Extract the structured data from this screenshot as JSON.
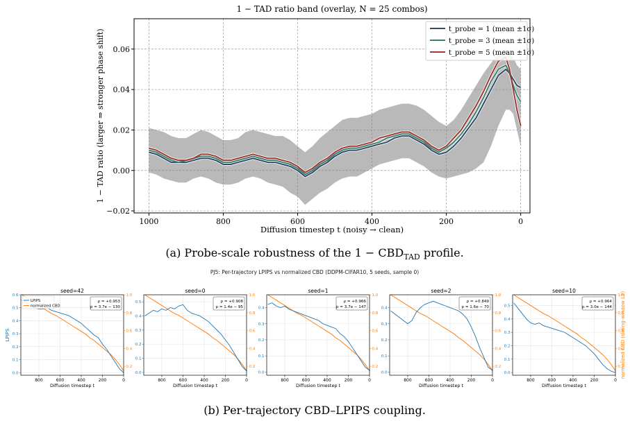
{
  "colors": {
    "band_gray": "#7f7f7f",
    "probe1": "#2f4b68",
    "probe3": "#3f7f6e",
    "probe5": "#9a3a35",
    "lpips": "#1f77b4",
    "cbd": "#ff7f0e"
  },
  "figure_a": {
    "caption": "(a) Probe-scale robustness of the 1 − CBD",
    "caption_sub": "TAD",
    "caption_tail": " profile."
  },
  "figure_b": {
    "caption": "(b) Per-trajectory CBD–LPIPS coupling.",
    "suptitle": "PJ5: Per-trajectory LPIPS vs normalized CBD (DDPM-CIFAR10, 5 seeds, sample 0)",
    "ylabel_left": "LPIPS",
    "ylabel_right": "normalized CBD (sliding-window L2)",
    "legend": [
      "LPIPS",
      "normalized CBD"
    ]
  },
  "chart_data": [
    {
      "type": "line",
      "title": "1 − TAD ratio band  (overlay, N = 25 combos)",
      "xlabel": "Diffusion timestep t (noisy → clean)",
      "ylabel": "1 − TAD ratio  (larger ⇒ stronger phase shift)",
      "xlim": [
        1000,
        0
      ],
      "ylim": [
        -0.021,
        0.075
      ],
      "x_ticks": [
        1000,
        800,
        600,
        400,
        200,
        0
      ],
      "y_ticks": [
        -0.02,
        0.0,
        0.02,
        0.04,
        0.06
      ],
      "y_tick_labels": [
        "−0.02",
        "0.00",
        "0.02",
        "0.04",
        "0.06"
      ],
      "grid": true,
      "legend_position": "top-right",
      "x": [
        1000,
        980,
        960,
        940,
        920,
        900,
        880,
        860,
        840,
        820,
        800,
        780,
        760,
        740,
        720,
        700,
        680,
        660,
        640,
        620,
        600,
        580,
        560,
        540,
        520,
        500,
        480,
        460,
        440,
        420,
        400,
        380,
        360,
        340,
        320,
        300,
        280,
        260,
        240,
        220,
        200,
        180,
        160,
        140,
        120,
        100,
        80,
        60,
        40,
        30,
        20,
        10,
        0
      ],
      "band": {
        "name": "overlay band (N = 25 combos)",
        "lower": [
          -0.001,
          -0.002,
          -0.004,
          -0.005,
          -0.006,
          -0.006,
          -0.004,
          -0.003,
          -0.004,
          -0.006,
          -0.007,
          -0.007,
          -0.006,
          -0.004,
          -0.003,
          -0.004,
          -0.006,
          -0.007,
          -0.008,
          -0.011,
          -0.013,
          -0.017,
          -0.014,
          -0.011,
          -0.009,
          -0.006,
          -0.004,
          -0.003,
          -0.003,
          -0.001,
          0.001,
          0.003,
          0.004,
          0.005,
          0.006,
          0.006,
          0.004,
          0.002,
          -0.001,
          -0.003,
          -0.004,
          -0.003,
          -0.002,
          -0.001,
          0.001,
          0.004,
          0.012,
          0.022,
          0.03,
          0.03,
          0.028,
          0.02,
          0.012
        ],
        "upper": [
          0.021,
          0.02,
          0.019,
          0.017,
          0.016,
          0.016,
          0.018,
          0.02,
          0.019,
          0.017,
          0.015,
          0.015,
          0.016,
          0.019,
          0.02,
          0.019,
          0.018,
          0.017,
          0.017,
          0.015,
          0.012,
          0.009,
          0.012,
          0.016,
          0.019,
          0.022,
          0.025,
          0.026,
          0.026,
          0.027,
          0.028,
          0.03,
          0.031,
          0.032,
          0.033,
          0.033,
          0.032,
          0.03,
          0.027,
          0.024,
          0.022,
          0.025,
          0.03,
          0.036,
          0.042,
          0.048,
          0.053,
          0.058,
          0.06,
          0.058,
          0.056,
          0.052,
          0.05
        ]
      },
      "series": [
        {
          "name": "t_probe = 1  (mean ±1σ)",
          "values": [
            0.009,
            0.008,
            0.006,
            0.004,
            0.004,
            0.004,
            0.005,
            0.006,
            0.006,
            0.005,
            0.003,
            0.003,
            0.004,
            0.005,
            0.006,
            0.005,
            0.004,
            0.004,
            0.003,
            0.002,
            0.0,
            -0.003,
            -0.001,
            0.002,
            0.004,
            0.007,
            0.009,
            0.01,
            0.01,
            0.011,
            0.012,
            0.013,
            0.014,
            0.016,
            0.017,
            0.017,
            0.015,
            0.013,
            0.01,
            0.008,
            0.009,
            0.012,
            0.016,
            0.021,
            0.026,
            0.033,
            0.04,
            0.047,
            0.05,
            0.048,
            0.045,
            0.042,
            0.041
          ]
        },
        {
          "name": "t_probe = 3  (mean ±1σ)",
          "values": [
            0.01,
            0.009,
            0.007,
            0.005,
            0.004,
            0.005,
            0.006,
            0.007,
            0.007,
            0.006,
            0.004,
            0.004,
            0.005,
            0.006,
            0.007,
            0.006,
            0.005,
            0.005,
            0.004,
            0.003,
            0.001,
            -0.002,
            0.0,
            0.003,
            0.005,
            0.008,
            0.01,
            0.011,
            0.011,
            0.012,
            0.013,
            0.014,
            0.016,
            0.017,
            0.018,
            0.018,
            0.016,
            0.014,
            0.011,
            0.009,
            0.011,
            0.014,
            0.018,
            0.023,
            0.029,
            0.036,
            0.044,
            0.05,
            0.052,
            0.048,
            0.042,
            0.037,
            0.034
          ]
        },
        {
          "name": "t_probe = 5  (mean ±1σ)",
          "values": [
            0.011,
            0.01,
            0.008,
            0.006,
            0.005,
            0.005,
            0.006,
            0.008,
            0.008,
            0.007,
            0.005,
            0.005,
            0.006,
            0.007,
            0.008,
            0.007,
            0.006,
            0.006,
            0.005,
            0.004,
            0.002,
            -0.001,
            0.001,
            0.004,
            0.006,
            0.009,
            0.011,
            0.012,
            0.012,
            0.013,
            0.014,
            0.016,
            0.017,
            0.018,
            0.019,
            0.019,
            0.017,
            0.015,
            0.012,
            0.01,
            0.012,
            0.016,
            0.02,
            0.026,
            0.032,
            0.039,
            0.047,
            0.054,
            0.056,
            0.05,
            0.04,
            0.03,
            0.022
          ]
        }
      ]
    },
    {
      "type": "line",
      "title": "seed=42",
      "xlabel": "Diffusion timestep t",
      "annotation": [
        "ρ = +0.953",
        "p = 3.7e − 130"
      ],
      "xlim": [
        970,
        0
      ],
      "x_ticks": [
        800,
        600,
        400,
        200,
        0
      ],
      "ylim_left": [
        -0.02,
        0.6
      ],
      "y_ticks_left": [
        0.0,
        0.1,
        0.2,
        0.3,
        0.4,
        0.5,
        0.6
      ],
      "ylim_right": [
        0.1,
        1.0
      ],
      "y_ticks_right": [
        0.2,
        0.4,
        0.6,
        0.8,
        1.0
      ],
      "x": [
        960,
        920,
        880,
        840,
        800,
        760,
        720,
        680,
        640,
        600,
        560,
        520,
        480,
        440,
        400,
        360,
        320,
        280,
        240,
        200,
        160,
        120,
        80,
        40,
        0
      ],
      "lpips": [
        0.56,
        0.54,
        0.52,
        0.5,
        0.49,
        0.49,
        0.5,
        0.48,
        0.47,
        0.46,
        0.45,
        0.44,
        0.42,
        0.4,
        0.38,
        0.35,
        0.32,
        0.29,
        0.27,
        0.22,
        0.18,
        0.13,
        0.08,
        0.03,
        0.0
      ],
      "cbd": [
        1.0,
        0.97,
        0.94,
        0.91,
        0.88,
        0.85,
        0.82,
        0.79,
        0.77,
        0.74,
        0.71,
        0.68,
        0.65,
        0.62,
        0.59,
        0.56,
        0.52,
        0.49,
        0.45,
        0.41,
        0.37,
        0.33,
        0.28,
        0.22,
        0.15
      ]
    },
    {
      "type": "line",
      "title": "seed=0",
      "xlabel": "Diffusion timestep t",
      "annotation": [
        "ρ = +0.908",
        "p = 1.4e − 95"
      ],
      "xlim": [
        970,
        0
      ],
      "x_ticks": [
        800,
        600,
        400,
        200,
        0
      ],
      "ylim_left": [
        -0.02,
        0.55
      ],
      "y_ticks_left": [
        0.0,
        0.1,
        0.2,
        0.3,
        0.4,
        0.5
      ],
      "ylim_right": [
        0.1,
        1.0
      ],
      "y_ticks_right": [
        0.2,
        0.4,
        0.6,
        0.8,
        1.0
      ],
      "x": [
        960,
        920,
        880,
        840,
        800,
        760,
        720,
        680,
        640,
        600,
        560,
        520,
        480,
        440,
        400,
        360,
        320,
        280,
        240,
        200,
        160,
        120,
        80,
        40,
        0
      ],
      "lpips": [
        0.4,
        0.42,
        0.44,
        0.43,
        0.45,
        0.44,
        0.46,
        0.45,
        0.47,
        0.48,
        0.44,
        0.42,
        0.41,
        0.4,
        0.38,
        0.36,
        0.33,
        0.3,
        0.27,
        0.23,
        0.19,
        0.14,
        0.09,
        0.04,
        0.01
      ],
      "cbd": [
        1.0,
        0.97,
        0.94,
        0.91,
        0.88,
        0.85,
        0.82,
        0.79,
        0.77,
        0.74,
        0.71,
        0.68,
        0.65,
        0.62,
        0.59,
        0.56,
        0.52,
        0.49,
        0.45,
        0.41,
        0.37,
        0.33,
        0.28,
        0.22,
        0.15
      ]
    },
    {
      "type": "line",
      "title": "seed=1",
      "xlabel": "Diffusion timestep t",
      "annotation": [
        "ρ = +0.966",
        "p = 3.7e − 147"
      ],
      "xlim": [
        970,
        0
      ],
      "x_ticks": [
        800,
        600,
        400,
        200,
        0
      ],
      "ylim_left": [
        -0.02,
        0.48
      ],
      "y_ticks_left": [
        0.0,
        0.1,
        0.2,
        0.3,
        0.4
      ],
      "ylim_right": [
        0.1,
        1.0
      ],
      "y_ticks_right": [
        0.2,
        0.4,
        0.6,
        0.8,
        1.0
      ],
      "x": [
        960,
        920,
        880,
        840,
        800,
        760,
        720,
        680,
        640,
        600,
        560,
        520,
        480,
        440,
        400,
        360,
        320,
        280,
        240,
        200,
        160,
        120,
        80,
        40,
        0
      ],
      "lpips": [
        0.42,
        0.43,
        0.41,
        0.4,
        0.41,
        0.39,
        0.38,
        0.37,
        0.36,
        0.35,
        0.34,
        0.33,
        0.32,
        0.3,
        0.29,
        0.28,
        0.27,
        0.24,
        0.22,
        0.19,
        0.15,
        0.11,
        0.07,
        0.03,
        0.01
      ],
      "cbd": [
        1.0,
        0.97,
        0.94,
        0.91,
        0.88,
        0.85,
        0.82,
        0.79,
        0.77,
        0.74,
        0.71,
        0.68,
        0.65,
        0.62,
        0.59,
        0.56,
        0.52,
        0.49,
        0.45,
        0.41,
        0.37,
        0.33,
        0.28,
        0.22,
        0.15
      ]
    },
    {
      "type": "line",
      "title": "seed=2",
      "xlabel": "Diffusion timestep t",
      "annotation": [
        "ρ = +0.849",
        "p = 1.6e − 70"
      ],
      "xlim": [
        970,
        0
      ],
      "x_ticks": [
        800,
        600,
        400,
        200,
        0
      ],
      "ylim_left": [
        -0.02,
        0.48
      ],
      "y_ticks_left": [
        0.0,
        0.1,
        0.2,
        0.3,
        0.4
      ],
      "ylim_right": [
        0.1,
        1.0
      ],
      "y_ticks_right": [
        0.2,
        0.4,
        0.6,
        0.8,
        1.0
      ],
      "x": [
        960,
        920,
        880,
        840,
        800,
        760,
        720,
        680,
        640,
        600,
        560,
        520,
        480,
        440,
        400,
        360,
        320,
        280,
        240,
        200,
        160,
        120,
        80,
        40,
        0
      ],
      "lpips": [
        0.38,
        0.36,
        0.34,
        0.32,
        0.3,
        0.32,
        0.37,
        0.4,
        0.42,
        0.43,
        0.44,
        0.43,
        0.42,
        0.41,
        0.4,
        0.39,
        0.38,
        0.36,
        0.33,
        0.28,
        0.22,
        0.15,
        0.09,
        0.03,
        0.01
      ],
      "cbd": [
        1.0,
        0.97,
        0.94,
        0.91,
        0.88,
        0.85,
        0.82,
        0.79,
        0.77,
        0.74,
        0.71,
        0.68,
        0.65,
        0.62,
        0.59,
        0.56,
        0.52,
        0.49,
        0.45,
        0.41,
        0.37,
        0.33,
        0.28,
        0.22,
        0.15
      ]
    },
    {
      "type": "line",
      "title": "seed=10",
      "xlabel": "Diffusion timestep t",
      "annotation": [
        "ρ = +0.964",
        "p = 3.0e − 144"
      ],
      "xlim": [
        970,
        0
      ],
      "x_ticks": [
        800,
        600,
        400,
        200,
        0
      ],
      "ylim_left": [
        -0.02,
        0.58
      ],
      "y_ticks_left": [
        0.0,
        0.1,
        0.2,
        0.3,
        0.4,
        0.5
      ],
      "ylim_right": [
        0.1,
        1.0
      ],
      "y_ticks_right": [
        0.2,
        0.4,
        0.6,
        0.8,
        1.0
      ],
      "x": [
        960,
        920,
        880,
        840,
        800,
        760,
        720,
        680,
        640,
        600,
        560,
        520,
        480,
        440,
        400,
        360,
        320,
        280,
        240,
        200,
        160,
        120,
        80,
        40,
        0
      ],
      "lpips": [
        0.52,
        0.48,
        0.44,
        0.4,
        0.37,
        0.36,
        0.37,
        0.35,
        0.34,
        0.33,
        0.32,
        0.31,
        0.3,
        0.28,
        0.26,
        0.24,
        0.22,
        0.2,
        0.17,
        0.14,
        0.1,
        0.06,
        0.03,
        0.01,
        0.0
      ],
      "cbd": [
        1.0,
        0.97,
        0.94,
        0.91,
        0.88,
        0.85,
        0.82,
        0.79,
        0.77,
        0.74,
        0.71,
        0.68,
        0.65,
        0.62,
        0.59,
        0.56,
        0.52,
        0.49,
        0.45,
        0.41,
        0.37,
        0.33,
        0.28,
        0.22,
        0.15
      ]
    }
  ]
}
